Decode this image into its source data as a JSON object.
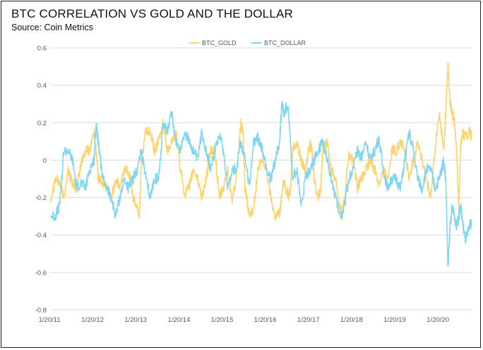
{
  "title": "BTC CORRELATION VS GOLD AND THE DOLLAR",
  "subtitle": "Source: Coin Metrics",
  "chart_data": {
    "type": "line",
    "ylim": [
      -0.8,
      0.6
    ],
    "y_ticks": [
      "0.6",
      "0.4",
      "0.2",
      "0",
      "-0.2",
      "-0.4",
      "-0.6",
      "-0.8"
    ],
    "x_ticks": [
      "1/20/11",
      "1/20/12",
      "1/20/13",
      "1/20/14",
      "1/20/15",
      "1/20/16",
      "1/20/17",
      "1/20/18",
      "1/20/19",
      "1/20/20"
    ],
    "grid": "horizontal",
    "legend_position": "top-center",
    "x_range_years": [
      2011.0,
      2020.75
    ],
    "series": [
      {
        "name": "BTC_GOLD",
        "color": "#FFD36B",
        "points": [
          [
            2011.0,
            -0.2
          ],
          [
            2011.1,
            -0.1
          ],
          [
            2011.2,
            -0.12
          ],
          [
            2011.3,
            -0.2
          ],
          [
            2011.4,
            -0.05
          ],
          [
            2011.5,
            -0.12
          ],
          [
            2011.6,
            -0.15
          ],
          [
            2011.7,
            -0.02
          ],
          [
            2011.8,
            0.05
          ],
          [
            2011.9,
            0.06
          ],
          [
            2012.0,
            0.15
          ],
          [
            2012.05,
            0.05
          ],
          [
            2012.1,
            -0.1
          ],
          [
            2012.2,
            -0.12
          ],
          [
            2012.3,
            -0.15
          ],
          [
            2012.4,
            -0.2
          ],
          [
            2012.5,
            -0.1
          ],
          [
            2012.6,
            -0.15
          ],
          [
            2012.7,
            -0.05
          ],
          [
            2012.8,
            -0.05
          ],
          [
            2012.9,
            -0.2
          ],
          [
            2013.0,
            -0.25
          ],
          [
            2013.05,
            -0.3
          ],
          [
            2013.1,
            0.0
          ],
          [
            2013.2,
            0.15
          ],
          [
            2013.3,
            0.15
          ],
          [
            2013.4,
            0.05
          ],
          [
            2013.5,
            0.1
          ],
          [
            2013.6,
            0.2
          ],
          [
            2013.7,
            0.05
          ],
          [
            2013.8,
            0.1
          ],
          [
            2013.9,
            0.15
          ],
          [
            2014.0,
            -0.05
          ],
          [
            2014.1,
            -0.18
          ],
          [
            2014.2,
            -0.15
          ],
          [
            2014.3,
            -0.05
          ],
          [
            2014.4,
            -0.1
          ],
          [
            2014.5,
            -0.2
          ],
          [
            2014.6,
            -0.1
          ],
          [
            2014.7,
            0.05
          ],
          [
            2014.8,
            0.05
          ],
          [
            2014.9,
            -0.2
          ],
          [
            2015.0,
            -0.15
          ],
          [
            2015.1,
            -0.05
          ],
          [
            2015.2,
            -0.2
          ],
          [
            2015.3,
            -0.1
          ],
          [
            2015.4,
            0.2
          ],
          [
            2015.45,
            0.15
          ],
          [
            2015.5,
            -0.15
          ],
          [
            2015.6,
            -0.3
          ],
          [
            2015.7,
            -0.25
          ],
          [
            2015.8,
            -0.05
          ],
          [
            2015.9,
            0.0
          ],
          [
            2016.0,
            -0.05
          ],
          [
            2016.1,
            -0.2
          ],
          [
            2016.2,
            -0.3
          ],
          [
            2016.3,
            -0.28
          ],
          [
            2016.4,
            -0.1
          ],
          [
            2016.5,
            -0.2
          ],
          [
            2016.55,
            -0.15
          ],
          [
            2016.6,
            0.05
          ],
          [
            2016.7,
            0.1
          ],
          [
            2016.8,
            0.0
          ],
          [
            2016.9,
            -0.05
          ],
          [
            2017.0,
            0.08
          ],
          [
            2017.05,
            0.05
          ],
          [
            2017.1,
            -0.1
          ],
          [
            2017.2,
            -0.2
          ],
          [
            2017.25,
            -0.15
          ],
          [
            2017.3,
            0.05
          ],
          [
            2017.4,
            0.1
          ],
          [
            2017.5,
            -0.05
          ],
          [
            2017.6,
            -0.1
          ],
          [
            2017.7,
            -0.25
          ],
          [
            2017.75,
            -0.3
          ],
          [
            2017.8,
            -0.2
          ],
          [
            2017.9,
            0.02
          ],
          [
            2018.0,
            0.0
          ],
          [
            2018.1,
            -0.15
          ],
          [
            2018.2,
            -0.1
          ],
          [
            2018.3,
            -0.05
          ],
          [
            2018.4,
            0.0
          ],
          [
            2018.5,
            -0.05
          ],
          [
            2018.6,
            -0.12
          ],
          [
            2018.7,
            -0.05
          ],
          [
            2018.8,
            -0.1
          ],
          [
            2018.9,
            0.05
          ],
          [
            2019.0,
            0.05
          ],
          [
            2019.1,
            0.1
          ],
          [
            2019.2,
            0.05
          ],
          [
            2019.3,
            -0.1
          ],
          [
            2019.4,
            0.0
          ],
          [
            2019.5,
            0.1
          ],
          [
            2019.6,
            0.0
          ],
          [
            2019.7,
            -0.1
          ],
          [
            2019.8,
            -0.2
          ],
          [
            2019.9,
            0.05
          ],
          [
            2020.0,
            0.25
          ],
          [
            2020.05,
            0.15
          ],
          [
            2020.1,
            0.05
          ],
          [
            2020.15,
            0.25
          ],
          [
            2020.2,
            0.52
          ],
          [
            2020.25,
            0.3
          ],
          [
            2020.3,
            0.25
          ],
          [
            2020.35,
            0.2
          ],
          [
            2020.4,
            0.05
          ],
          [
            2020.45,
            -0.25
          ],
          [
            2020.5,
            0.1
          ],
          [
            2020.55,
            0.15
          ],
          [
            2020.6,
            0.12
          ],
          [
            2020.7,
            0.15
          ],
          [
            2020.75,
            0.12
          ]
        ]
      },
      {
        "name": "BTC_DOLLAR",
        "color": "#7FD6F2",
        "points": [
          [
            2011.0,
            -0.3
          ],
          [
            2011.1,
            -0.3
          ],
          [
            2011.2,
            -0.25
          ],
          [
            2011.3,
            0.05
          ],
          [
            2011.4,
            0.05
          ],
          [
            2011.5,
            0.0
          ],
          [
            2011.6,
            -0.15
          ],
          [
            2011.7,
            -0.12
          ],
          [
            2011.8,
            -0.15
          ],
          [
            2011.9,
            -0.05
          ],
          [
            2012.0,
            0.0
          ],
          [
            2012.05,
            0.2
          ],
          [
            2012.1,
            0.1
          ],
          [
            2012.2,
            -0.1
          ],
          [
            2012.3,
            -0.15
          ],
          [
            2012.4,
            -0.2
          ],
          [
            2012.5,
            -0.3
          ],
          [
            2012.6,
            -0.2
          ],
          [
            2012.7,
            -0.1
          ],
          [
            2012.8,
            -0.15
          ],
          [
            2012.9,
            -0.1
          ],
          [
            2013.0,
            -0.05
          ],
          [
            2013.1,
            0.05
          ],
          [
            2013.2,
            -0.1
          ],
          [
            2013.3,
            -0.2
          ],
          [
            2013.4,
            -0.1
          ],
          [
            2013.5,
            -0.1
          ],
          [
            2013.6,
            0.2
          ],
          [
            2013.7,
            0.15
          ],
          [
            2013.8,
            0.25
          ],
          [
            2013.9,
            0.1
          ],
          [
            2014.0,
            0.05
          ],
          [
            2014.1,
            0.15
          ],
          [
            2014.2,
            0.1
          ],
          [
            2014.3,
            0.05
          ],
          [
            2014.4,
            0.0
          ],
          [
            2014.5,
            0.15
          ],
          [
            2014.6,
            0.05
          ],
          [
            2014.7,
            -0.05
          ],
          [
            2014.8,
            0.05
          ],
          [
            2014.9,
            0.15
          ],
          [
            2015.0,
            0.05
          ],
          [
            2015.1,
            -0.15
          ],
          [
            2015.2,
            -0.05
          ],
          [
            2015.3,
            -0.05
          ],
          [
            2015.4,
            0.1
          ],
          [
            2015.5,
            0.0
          ],
          [
            2015.6,
            -0.15
          ],
          [
            2015.7,
            0.1
          ],
          [
            2015.8,
            0.12
          ],
          [
            2015.9,
            0.05
          ],
          [
            2016.0,
            -0.05
          ],
          [
            2016.1,
            -0.1
          ],
          [
            2016.2,
            0.0
          ],
          [
            2016.3,
            0.1
          ],
          [
            2016.35,
            0.3
          ],
          [
            2016.4,
            0.25
          ],
          [
            2016.5,
            0.3
          ],
          [
            2016.6,
            -0.1
          ],
          [
            2016.7,
            -0.05
          ],
          [
            2016.8,
            -0.25
          ],
          [
            2016.9,
            -0.1
          ],
          [
            2017.0,
            -0.05
          ],
          [
            2017.1,
            0.0
          ],
          [
            2017.2,
            0.05
          ],
          [
            2017.3,
            0.1
          ],
          [
            2017.4,
            0.0
          ],
          [
            2017.5,
            -0.1
          ],
          [
            2017.6,
            -0.2
          ],
          [
            2017.7,
            -0.3
          ],
          [
            2017.8,
            -0.25
          ],
          [
            2017.9,
            -0.1
          ],
          [
            2018.0,
            -0.05
          ],
          [
            2018.1,
            0.05
          ],
          [
            2018.2,
            0.02
          ],
          [
            2018.3,
            0.1
          ],
          [
            2018.4,
            0.0
          ],
          [
            2018.5,
            0.05
          ],
          [
            2018.6,
            0.12
          ],
          [
            2018.7,
            -0.05
          ],
          [
            2018.8,
            -0.15
          ],
          [
            2018.9,
            -0.1
          ],
          [
            2019.0,
            -0.1
          ],
          [
            2019.1,
            -0.15
          ],
          [
            2019.2,
            0.0
          ],
          [
            2019.3,
            0.15
          ],
          [
            2019.4,
            0.05
          ],
          [
            2019.5,
            -0.1
          ],
          [
            2019.6,
            -0.15
          ],
          [
            2019.7,
            -0.05
          ],
          [
            2019.8,
            -0.05
          ],
          [
            2019.9,
            -0.15
          ],
          [
            2020.0,
            -0.1
          ],
          [
            2020.05,
            -0.05
          ],
          [
            2020.1,
            0.0
          ],
          [
            2020.15,
            -0.1
          ],
          [
            2020.2,
            -0.58
          ],
          [
            2020.25,
            -0.35
          ],
          [
            2020.3,
            -0.25
          ],
          [
            2020.35,
            -0.3
          ],
          [
            2020.4,
            -0.35
          ],
          [
            2020.45,
            -0.3
          ],
          [
            2020.5,
            -0.25
          ],
          [
            2020.55,
            -0.35
          ],
          [
            2020.6,
            -0.42
          ],
          [
            2020.65,
            -0.4
          ],
          [
            2020.7,
            -0.35
          ],
          [
            2020.75,
            -0.33
          ]
        ]
      }
    ]
  }
}
